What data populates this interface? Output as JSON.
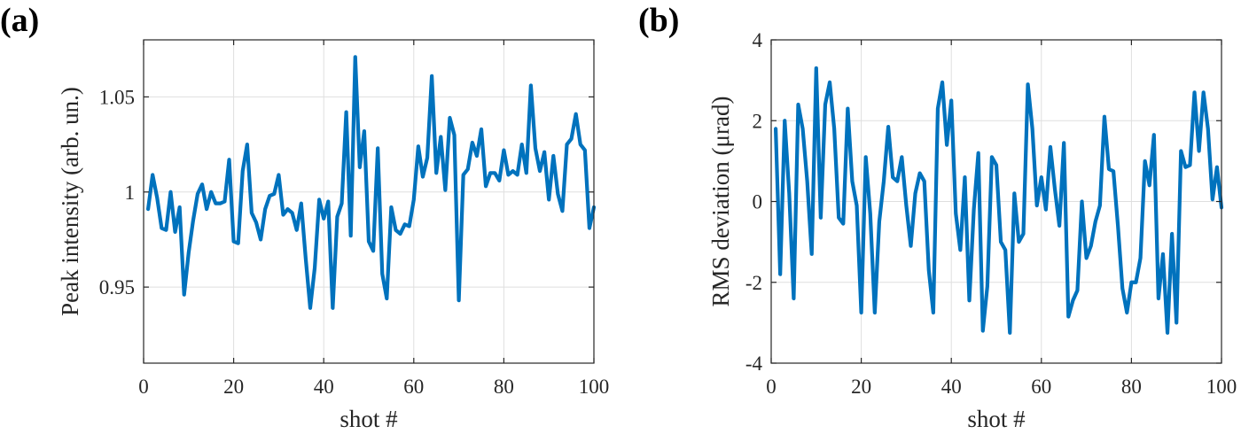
{
  "chart_data": [
    {
      "panel": "(a)",
      "type": "line",
      "title": "",
      "xlabel": "shot #",
      "ylabel": "Peak intensity (arb. un.)",
      "xlim": [
        0,
        100
      ],
      "ylim": [
        0.91,
        1.08
      ],
      "xticks": [
        0,
        20,
        40,
        60,
        80,
        100
      ],
      "yticks": [
        0.95,
        1,
        1.05
      ],
      "ytick_labels": [
        "0.95",
        "1",
        "1.05"
      ],
      "grid": true,
      "color": "#0072BD",
      "x": [
        1,
        2,
        3,
        4,
        5,
        6,
        7,
        8,
        9,
        10,
        11,
        12,
        13,
        14,
        15,
        16,
        17,
        18,
        19,
        20,
        21,
        22,
        23,
        24,
        25,
        26,
        27,
        28,
        29,
        30,
        31,
        32,
        33,
        34,
        35,
        36,
        37,
        38,
        39,
        40,
        41,
        42,
        43,
        44,
        45,
        46,
        47,
        48,
        49,
        50,
        51,
        52,
        53,
        54,
        55,
        56,
        57,
        58,
        59,
        60,
        61,
        62,
        63,
        64,
        65,
        66,
        67,
        68,
        69,
        70,
        71,
        72,
        73,
        74,
        75,
        76,
        77,
        78,
        79,
        80,
        81,
        82,
        83,
        84,
        85,
        86,
        87,
        88,
        89,
        90,
        91,
        92,
        93,
        94,
        95,
        96,
        97,
        98,
        99,
        100
      ],
      "y": [
        0.991,
        1.009,
        0.997,
        0.981,
        0.98,
        1.0,
        0.979,
        0.992,
        0.946,
        0.968,
        0.985,
        0.999,
        1.004,
        0.991,
        1.0,
        0.994,
        0.994,
        0.995,
        1.017,
        0.974,
        0.973,
        1.011,
        1.025,
        0.989,
        0.984,
        0.975,
        0.991,
        0.998,
        0.999,
        1.009,
        0.988,
        0.991,
        0.989,
        0.98,
        0.994,
        0.965,
        0.939,
        0.96,
        0.996,
        0.986,
        0.995,
        0.939,
        0.987,
        0.994,
        1.042,
        0.977,
        1.071,
        1.013,
        1.032,
        0.974,
        0.969,
        1.023,
        0.957,
        0.944,
        0.992,
        0.98,
        0.978,
        0.983,
        0.982,
        0.996,
        1.024,
        1.008,
        1.018,
        1.061,
        1.01,
        1.029,
        1.001,
        1.039,
        1.03,
        0.943,
        1.009,
        1.012,
        1.026,
        1.019,
        1.033,
        1.003,
        1.01,
        1.01,
        1.006,
        1.022,
        1.009,
        1.011,
        1.009,
        1.025,
        1.01,
        1.056,
        1.023,
        1.011,
        1.021,
        0.996,
        1.019,
        0.999,
        0.99,
        1.025,
        1.028,
        1.041,
        1.025,
        1.022,
        0.981,
        0.992
      ]
    },
    {
      "panel": "(b)",
      "type": "line",
      "title": "",
      "xlabel": "shot #",
      "ylabel": "RMS deviation (μrad)",
      "xlim": [
        0,
        100
      ],
      "ylim": [
        -4,
        4
      ],
      "xticks": [
        0,
        20,
        40,
        60,
        80,
        100
      ],
      "yticks": [
        -4,
        -2,
        0,
        2,
        4
      ],
      "ytick_labels": [
        "-4",
        "-2",
        "0",
        "2",
        "4"
      ],
      "grid": true,
      "color": "#0072BD",
      "x": [
        1,
        2,
        3,
        4,
        5,
        6,
        7,
        8,
        9,
        10,
        11,
        12,
        13,
        14,
        15,
        16,
        17,
        18,
        19,
        20,
        21,
        22,
        23,
        24,
        25,
        26,
        27,
        28,
        29,
        30,
        31,
        32,
        33,
        34,
        35,
        36,
        37,
        38,
        39,
        40,
        41,
        42,
        43,
        44,
        45,
        46,
        47,
        48,
        49,
        50,
        51,
        52,
        53,
        54,
        55,
        56,
        57,
        58,
        59,
        60,
        61,
        62,
        63,
        64,
        65,
        66,
        67,
        68,
        69,
        70,
        71,
        72,
        73,
        74,
        75,
        76,
        77,
        78,
        79,
        80,
        81,
        82,
        83,
        84,
        85,
        86,
        87,
        88,
        89,
        90,
        91,
        92,
        93,
        94,
        95,
        96,
        97,
        98,
        99,
        100
      ],
      "y": [
        1.8,
        -1.8,
        2.0,
        0.2,
        -2.4,
        2.4,
        1.8,
        0.5,
        -1.3,
        3.3,
        -0.4,
        2.4,
        2.95,
        1.8,
        -0.4,
        -0.55,
        2.3,
        0.5,
        -0.1,
        -2.75,
        1.1,
        -0.3,
        -2.75,
        -0.5,
        0.5,
        1.85,
        0.6,
        0.5,
        1.1,
        -0.1,
        -1.1,
        0.2,
        0.7,
        0.5,
        -1.7,
        -2.75,
        2.3,
        2.95,
        1.4,
        2.5,
        -0.3,
        -1.2,
        0.6,
        -2.45,
        -0.2,
        1.2,
        -3.2,
        -2.1,
        1.1,
        0.9,
        -1.0,
        -1.2,
        -3.25,
        0.2,
        -1.0,
        -0.8,
        2.9,
        1.8,
        -0.1,
        0.6,
        -0.2,
        1.35,
        0.3,
        -0.6,
        1.45,
        -2.85,
        -2.45,
        -2.2,
        0.0,
        -1.4,
        -1.1,
        -0.5,
        -0.1,
        2.1,
        0.8,
        0.75,
        -0.6,
        -2.15,
        -2.75,
        -2.0,
        -2.0,
        -1.4,
        1.0,
        0.4,
        1.65,
        -2.4,
        -1.3,
        -3.25,
        -0.8,
        -3.0,
        1.25,
        0.85,
        0.9,
        2.7,
        1.25,
        2.7,
        1.8,
        0.05,
        0.85,
        -0.15
      ]
    }
  ]
}
